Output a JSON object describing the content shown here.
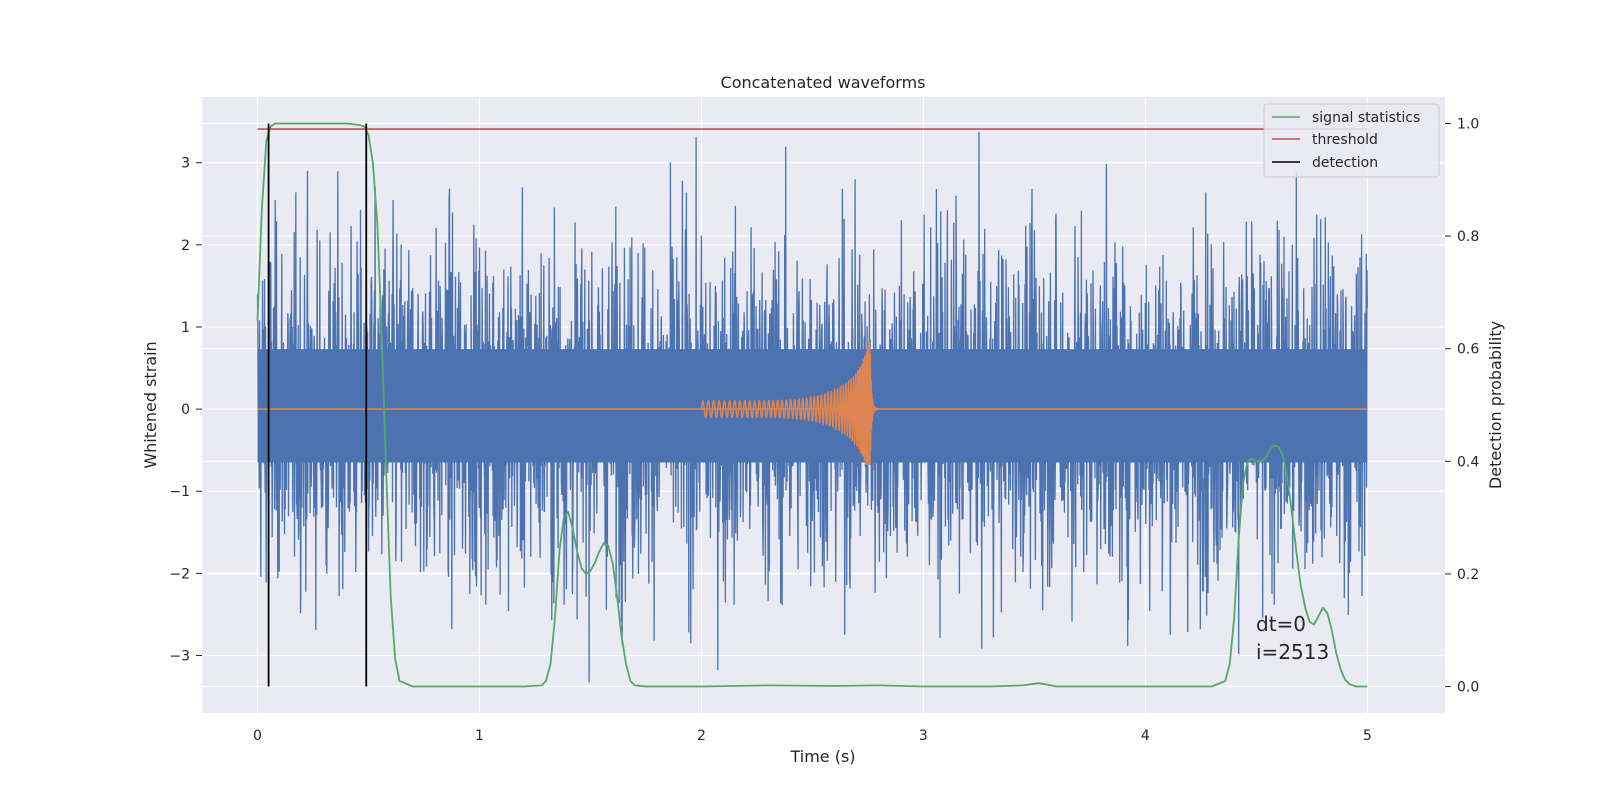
{
  "chart_data": {
    "type": "line",
    "title": "Concatenated waveforms",
    "xlabel": "Time (s)",
    "ylabel_left": "Whitened strain",
    "ylabel_right": "Detection probability",
    "xlim": [
      -0.25,
      5.35
    ],
    "ylim_left": [
      -3.7,
      3.8
    ],
    "ylim_right": [
      -0.047,
      1.047
    ],
    "x_ticks": [
      0,
      1,
      2,
      3,
      4,
      5
    ],
    "y_ticks_left": [
      -3,
      -2,
      -1,
      0,
      1,
      2,
      3
    ],
    "y_ticks_right": [
      0.0,
      0.2,
      0.4,
      0.6,
      0.8,
      1.0
    ],
    "x_tick_labels": [
      "0",
      "1",
      "2",
      "3",
      "4",
      "5"
    ],
    "y_tick_labels_left": [
      "−3",
      "−2",
      "−1",
      "0",
      "1",
      "2",
      "3"
    ],
    "y_tick_labels_right": [
      "0.0",
      "0.2",
      "0.4",
      "0.6",
      "0.8",
      "1.0"
    ],
    "grid": true,
    "legend_position": "top-right",
    "colors": {
      "strain": "#4c72b0",
      "waveform": "#dd8452",
      "signal_statistics": "#55a868",
      "threshold": "#c44e52",
      "detection": "#000000",
      "plot_background": "#eaeaf2",
      "grid": "#ffffff"
    },
    "series": [
      {
        "name": "signal statistics",
        "axis": "right",
        "x": [
          0.0,
          0.02,
          0.04,
          0.06,
          0.08,
          0.1,
          0.2,
          0.3,
          0.4,
          0.45,
          0.48,
          0.5,
          0.52,
          0.54,
          0.56,
          0.58,
          0.6,
          0.62,
          0.64,
          0.7,
          1.0,
          1.2,
          1.28,
          1.3,
          1.32,
          1.34,
          1.36,
          1.38,
          1.4,
          1.42,
          1.44,
          1.46,
          1.48,
          1.5,
          1.52,
          1.54,
          1.56,
          1.58,
          1.6,
          1.62,
          1.64,
          1.66,
          1.68,
          1.7,
          1.75,
          2.0,
          2.3,
          2.6,
          2.8,
          3.0,
          3.3,
          3.45,
          3.5,
          3.52,
          3.55,
          3.6,
          4.0,
          4.3,
          4.36,
          4.38,
          4.4,
          4.42,
          4.44,
          4.46,
          4.48,
          4.5,
          4.52,
          4.54,
          4.56,
          4.58,
          4.6,
          4.62,
          4.64,
          4.66,
          4.68,
          4.7,
          4.72,
          4.74,
          4.76,
          4.78,
          4.8,
          4.82,
          4.84,
          4.86,
          4.88,
          4.9,
          4.92,
          4.95,
          5.0
        ],
        "values": [
          0.65,
          0.85,
          0.97,
          0.995,
          1.0,
          1.0,
          1.0,
          1.0,
          1.0,
          0.998,
          0.995,
          0.98,
          0.93,
          0.82,
          0.62,
          0.38,
          0.16,
          0.05,
          0.01,
          0.0,
          0.0,
          0.0,
          0.002,
          0.01,
          0.04,
          0.12,
          0.24,
          0.3,
          0.31,
          0.28,
          0.24,
          0.21,
          0.2,
          0.205,
          0.22,
          0.24,
          0.255,
          0.25,
          0.22,
          0.16,
          0.09,
          0.04,
          0.01,
          0.002,
          0.0,
          0.0,
          0.002,
          0.001,
          0.002,
          0.0,
          0.0,
          0.002,
          0.005,
          0.006,
          0.004,
          0.0,
          0.0,
          0.0,
          0.01,
          0.04,
          0.12,
          0.26,
          0.36,
          0.4,
          0.405,
          0.4,
          0.4,
          0.405,
          0.42,
          0.428,
          0.426,
          0.41,
          0.37,
          0.31,
          0.24,
          0.18,
          0.14,
          0.115,
          0.11,
          0.125,
          0.14,
          0.13,
          0.1,
          0.06,
          0.03,
          0.012,
          0.004,
          0.0,
          0.0
        ]
      },
      {
        "name": "threshold",
        "axis": "right",
        "x": [
          0.0,
          5.0
        ],
        "values": [
          0.99,
          0.99
        ]
      },
      {
        "name": "detection",
        "axis": "right",
        "type": "vlines",
        "x": [
          0.05,
          0.49
        ],
        "ymin": 0.0,
        "ymax": 1.0
      },
      {
        "axis": "left",
        "type": "noise",
        "x_range": [
          0.0,
          5.0
        ],
        "band": [
          -0.65,
          0.73
        ],
        "max_abs": 3.45
      },
      {
        "axis": "left",
        "type": "chirp",
        "x_range": [
          2.0,
          2.8
        ],
        "peak_x": 2.76,
        "peak_max": 0.98,
        "peak_min": -0.68
      }
    ],
    "annotations": [
      "dt=0",
      "i=2513"
    ]
  }
}
